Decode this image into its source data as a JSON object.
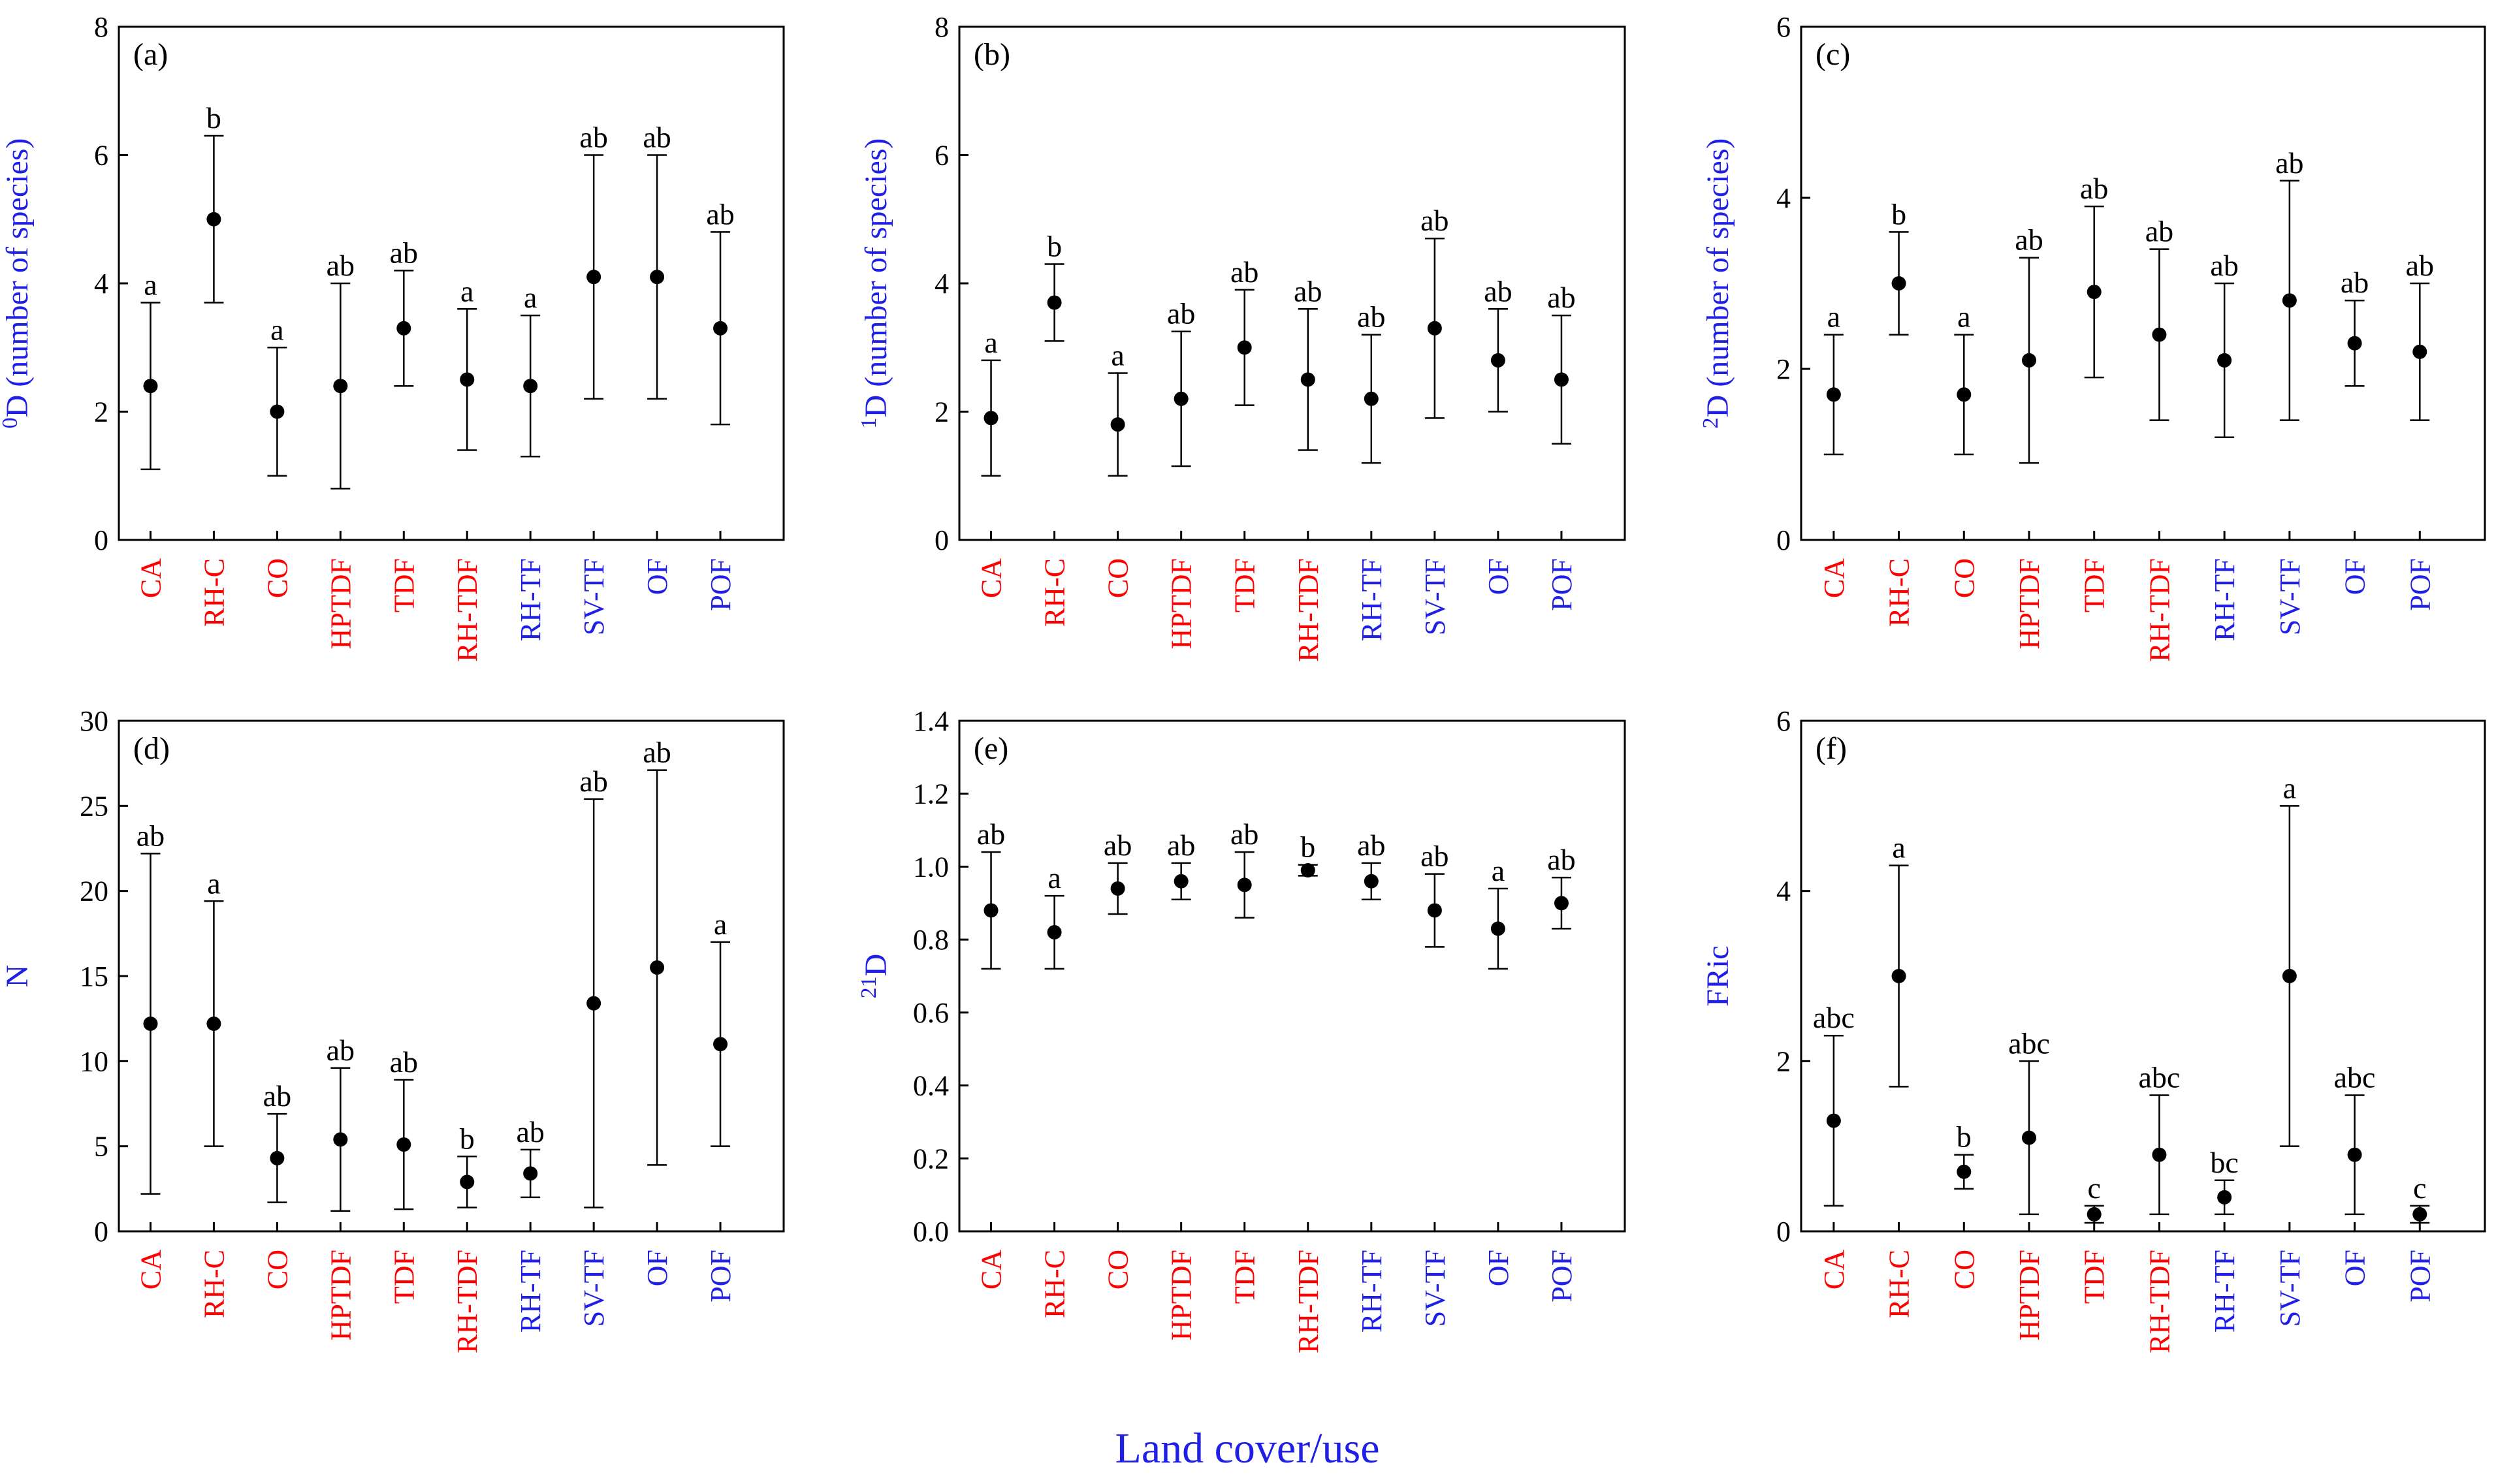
{
  "x_axis_label": "Land cover/use",
  "colors": {
    "red": "#ff0000",
    "blue": "#1f1fe6",
    "black": "#000000"
  },
  "chart_data": [
    {
      "type": "scatter",
      "panel": "(a)",
      "ylabel_sup": "0",
      "ylabel_base": "D",
      "ylabel_rest": " (number of species)",
      "ylim": [
        0,
        8
      ],
      "yticks": [
        "0",
        "2",
        "4",
        "6",
        "8"
      ],
      "categories": [
        "CA",
        "RH-C",
        "CO",
        "HPTDF",
        "TDF",
        "RH-TDF",
        "RH-TF",
        "SV-TF",
        "OF",
        "POF"
      ],
      "category_colors": [
        "red",
        "red",
        "red",
        "red",
        "red",
        "red",
        "blue",
        "blue",
        "blue",
        "blue"
      ],
      "means": [
        2.4,
        5.0,
        2.0,
        2.4,
        3.3,
        2.5,
        2.4,
        4.1,
        4.1,
        3.3
      ],
      "lower": [
        1.1,
        3.7,
        1.0,
        0.8,
        2.4,
        1.4,
        1.3,
        2.2,
        2.2,
        1.8
      ],
      "upper": [
        3.7,
        6.3,
        3.0,
        4.0,
        4.2,
        3.6,
        3.5,
        6.0,
        6.0,
        4.8
      ],
      "letters": [
        "a",
        "b",
        "a",
        "ab",
        "ab",
        "a",
        "a",
        "ab",
        "ab",
        "ab"
      ]
    },
    {
      "type": "scatter",
      "panel": "(b)",
      "ylabel_sup": "1",
      "ylabel_base": "D",
      "ylabel_rest": " (number of species)",
      "ylim": [
        0,
        8
      ],
      "yticks": [
        "0",
        "2",
        "4",
        "6",
        "8"
      ],
      "categories": [
        "CA",
        "RH-C",
        "CO",
        "HPTDF",
        "TDF",
        "RH-TDF",
        "RH-TF",
        "SV-TF",
        "OF",
        "POF"
      ],
      "category_colors": [
        "red",
        "red",
        "red",
        "red",
        "red",
        "red",
        "blue",
        "blue",
        "blue",
        "blue"
      ],
      "means": [
        1.9,
        3.7,
        1.8,
        2.2,
        3.0,
        2.5,
        2.2,
        3.3,
        2.8,
        2.5
      ],
      "lower": [
        1.0,
        3.1,
        1.0,
        1.15,
        2.1,
        1.4,
        1.2,
        1.9,
        2.0,
        1.5
      ],
      "upper": [
        2.8,
        4.3,
        2.6,
        3.25,
        3.9,
        3.6,
        3.2,
        4.7,
        3.6,
        3.5
      ],
      "letters": [
        "a",
        "b",
        "a",
        "ab",
        "ab",
        "ab",
        "ab",
        "ab",
        "ab",
        "ab"
      ]
    },
    {
      "type": "scatter",
      "panel": "(c)",
      "ylabel_sup": "2",
      "ylabel_base": "D",
      "ylabel_rest": " (number of species)",
      "ylim": [
        0,
        6
      ],
      "yticks": [
        "0",
        "2",
        "4",
        "6"
      ],
      "categories": [
        "CA",
        "RH-C",
        "CO",
        "HPTDF",
        "TDF",
        "RH-TDF",
        "RH-TF",
        "SV-TF",
        "OF",
        "POF"
      ],
      "category_colors": [
        "red",
        "red",
        "red",
        "red",
        "red",
        "red",
        "blue",
        "blue",
        "blue",
        "blue"
      ],
      "means": [
        1.7,
        3.0,
        1.7,
        2.1,
        2.9,
        2.4,
        2.1,
        2.8,
        2.3,
        2.2
      ],
      "lower": [
        1.0,
        2.4,
        1.0,
        0.9,
        1.9,
        1.4,
        1.2,
        1.4,
        1.8,
        1.4
      ],
      "upper": [
        2.4,
        3.6,
        2.4,
        3.3,
        3.9,
        3.4,
        3.0,
        4.2,
        2.8,
        3.0
      ],
      "letters": [
        "a",
        "b",
        "a",
        "ab",
        "ab",
        "ab",
        "ab",
        "ab",
        "ab",
        "ab"
      ]
    },
    {
      "type": "scatter",
      "panel": "(d)",
      "ylabel_sup": "",
      "ylabel_base": "N",
      "ylabel_rest": "",
      "ylim": [
        0,
        30
      ],
      "yticks": [
        "0",
        "5",
        "10",
        "15",
        "20",
        "25",
        "30"
      ],
      "categories": [
        "CA",
        "RH-C",
        "CO",
        "HPTDF",
        "TDF",
        "RH-TDF",
        "RH-TF",
        "SV-TF",
        "OF",
        "POF"
      ],
      "category_colors": [
        "red",
        "red",
        "red",
        "red",
        "red",
        "red",
        "blue",
        "blue",
        "blue",
        "blue"
      ],
      "means": [
        12.2,
        12.2,
        4.3,
        5.4,
        5.1,
        2.9,
        3.4,
        13.4,
        15.5,
        11.0
      ],
      "lower": [
        2.2,
        5.0,
        1.7,
        1.2,
        1.3,
        1.4,
        2.0,
        1.4,
        3.9,
        5.0
      ],
      "upper": [
        22.2,
        19.4,
        6.9,
        9.6,
        8.9,
        4.4,
        4.8,
        25.4,
        27.1,
        17.0
      ],
      "letters": [
        "ab",
        "a",
        "ab",
        "ab",
        "ab",
        "b",
        "ab",
        "ab",
        "ab",
        "a"
      ]
    },
    {
      "type": "scatter",
      "panel": "(e)",
      "ylabel_sup": "21",
      "ylabel_base": "D",
      "ylabel_rest": "",
      "ylim": [
        0,
        1.4
      ],
      "yticks": [
        "0.0",
        "0.2",
        "0.4",
        "0.6",
        "0.8",
        "1.0",
        "1.2",
        "1.4"
      ],
      "categories": [
        "CA",
        "RH-C",
        "CO",
        "HPTDF",
        "TDF",
        "RH-TDF",
        "RH-TF",
        "SV-TF",
        "OF",
        "POF"
      ],
      "category_colors": [
        "red",
        "red",
        "red",
        "red",
        "red",
        "red",
        "blue",
        "blue",
        "blue",
        "blue"
      ],
      "means": [
        0.88,
        0.82,
        0.94,
        0.96,
        0.95,
        0.99,
        0.96,
        0.88,
        0.83,
        0.9
      ],
      "lower": [
        0.72,
        0.72,
        0.87,
        0.91,
        0.86,
        0.975,
        0.91,
        0.78,
        0.72,
        0.83
      ],
      "upper": [
        1.04,
        0.92,
        1.01,
        1.01,
        1.04,
        1.005,
        1.01,
        0.98,
        0.94,
        0.97
      ],
      "letters": [
        "ab",
        "a",
        "ab",
        "ab",
        "ab",
        "b",
        "ab",
        "ab",
        "a",
        "ab"
      ]
    },
    {
      "type": "scatter",
      "panel": "(f)",
      "ylabel_sup": "",
      "ylabel_base": "FRic",
      "ylabel_rest": "",
      "ylim": [
        0,
        6
      ],
      "yticks": [
        "0",
        "2",
        "4",
        "6"
      ],
      "categories": [
        "CA",
        "RH-C",
        "CO",
        "HPTDF",
        "TDF",
        "RH-TDF",
        "RH-TF",
        "SV-TF",
        "OF",
        "POF"
      ],
      "category_colors": [
        "red",
        "red",
        "red",
        "red",
        "red",
        "red",
        "blue",
        "blue",
        "blue",
        "blue"
      ],
      "means": [
        1.3,
        3.0,
        0.7,
        1.1,
        0.2,
        0.9,
        0.4,
        3.0,
        0.9,
        0.2
      ],
      "lower": [
        0.3,
        1.7,
        0.5,
        0.2,
        0.1,
        0.2,
        0.2,
        1.0,
        0.2,
        0.1
      ],
      "upper": [
        2.3,
        4.3,
        0.9,
        2.0,
        0.3,
        1.6,
        0.6,
        5.0,
        1.6,
        0.3
      ],
      "letters": [
        "abc",
        "a",
        "b",
        "abc",
        "c",
        "abc",
        "bc",
        "a",
        "abc",
        "c"
      ]
    }
  ]
}
